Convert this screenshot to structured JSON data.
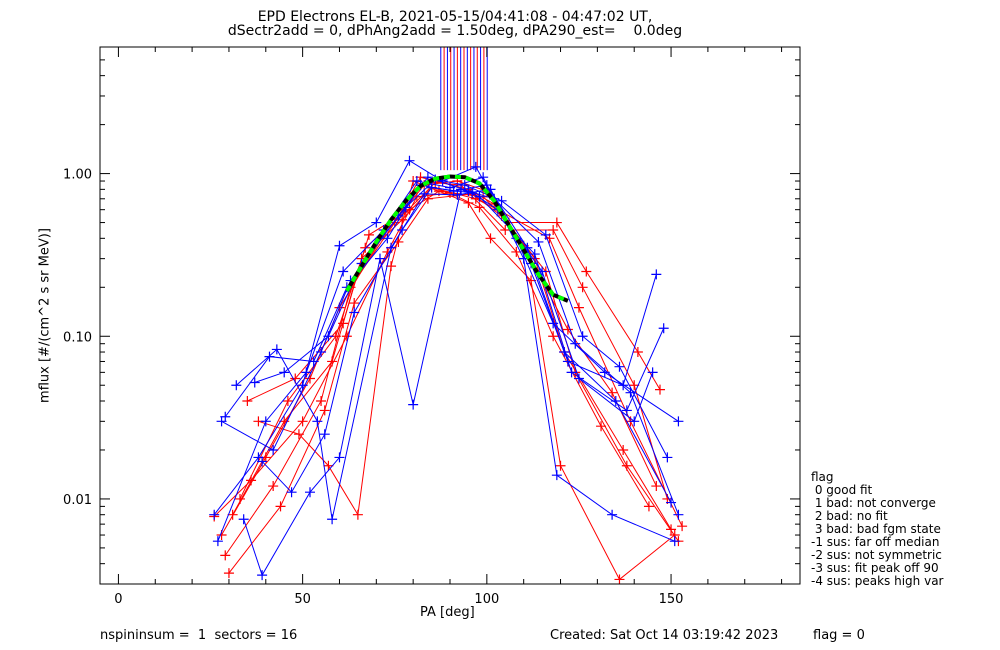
{
  "chart_data": {
    "type": "scatter",
    "title": "EPD Electrons EL-B, 2021-05-15/04:41:08 - 04:47:02 UT,",
    "subtitle": "dSectr2add = 0, dPhAng2add = 1.50deg, dPA290_est=    0.0deg",
    "xlabel": "PA [deg]",
    "ylabel": "mflux [#/(cm^2 s sr MeV)]",
    "xlim": [
      -5,
      185
    ],
    "ylim": [
      0.003,
      6.0
    ],
    "yscale": "log",
    "xticks": [
      0,
      50,
      100,
      150
    ],
    "yticks": [
      0.01,
      0.1,
      1.0
    ],
    "yticklabels": [
      "0.01",
      "0.10",
      "1.00"
    ],
    "grid": false,
    "series": [
      {
        "color": "#ff0000",
        "marker": "+",
        "x": [
          28,
          40,
          52,
          60,
          72,
          83,
          92,
          100,
          110,
          122,
          134,
          146
        ],
        "y": [
          0.006,
          0.018,
          0.055,
          0.15,
          0.42,
          0.85,
          0.9,
          0.78,
          0.36,
          0.11,
          0.045,
          0.012
        ]
      },
      {
        "color": "#ff0000",
        "marker": "+",
        "x": [
          29,
          42,
          55,
          63,
          75,
          82,
          95,
          102,
          113,
          121,
          137,
          150
        ],
        "y": [
          0.0045,
          0.012,
          0.04,
          0.2,
          0.5,
          0.95,
          0.8,
          0.65,
          0.3,
          0.08,
          0.02,
          0.0065
        ]
      },
      {
        "color": "#ff0000",
        "marker": "+",
        "x": [
          30,
          44,
          56,
          64,
          76,
          84,
          96,
          104,
          116,
          124,
          138,
          152
        ],
        "y": [
          0.0035,
          0.009,
          0.035,
          0.16,
          0.38,
          0.7,
          0.75,
          0.55,
          0.25,
          0.06,
          0.016,
          0.0055
        ]
      },
      {
        "color": "#ff0000",
        "marker": "+",
        "x": [
          31,
          45,
          58,
          66,
          77,
          85,
          97,
          103,
          117,
          125,
          139,
          153
        ],
        "y": [
          0.008,
          0.03,
          0.07,
          0.3,
          0.52,
          0.82,
          0.7,
          0.6,
          0.4,
          0.15,
          0.03,
          0.0068
        ]
      },
      {
        "color": "#ff0000",
        "marker": "+",
        "x": [
          33,
          46,
          59,
          67,
          78,
          86,
          93,
          105,
          118,
          126,
          140,
          149
        ],
        "y": [
          0.01,
          0.04,
          0.1,
          0.35,
          0.58,
          0.88,
          0.85,
          0.45,
          0.45,
          0.2,
          0.05,
          0.01
        ]
      },
      {
        "color": "#ff0000",
        "marker": "+",
        "x": [
          35,
          48,
          61,
          68,
          79,
          87,
          99,
          106,
          119,
          127,
          141,
          147
        ],
        "y": [
          0.04,
          0.055,
          0.12,
          0.42,
          0.6,
          0.78,
          0.72,
          0.5,
          0.5,
          0.25,
          0.08,
          0.047
        ]
      },
      {
        "color": "#ff0000",
        "marker": "+",
        "x": [
          38,
          49,
          57,
          65,
          74,
          80,
          95,
          101,
          112,
          120,
          136,
          151
        ],
        "y": [
          0.03,
          0.025,
          0.016,
          0.008,
          0.27,
          0.9,
          0.66,
          0.4,
          0.22,
          0.016,
          0.0032,
          0.006
        ]
      },
      {
        "color": "#ff0000",
        "marker": "+",
        "x": [
          26,
          36,
          50,
          62,
          73,
          81,
          90,
          98,
          108,
          118,
          131,
          144
        ],
        "y": [
          0.0078,
          0.013,
          0.03,
          0.1,
          0.33,
          0.72,
          0.76,
          0.62,
          0.33,
          0.1,
          0.028,
          0.009
        ]
      },
      {
        "color": "#0000ff",
        "marker": "+",
        "x": [
          26,
          38,
          50,
          60,
          70,
          79,
          88,
          97,
          108,
          118,
          132,
          152
        ],
        "y": [
          0.008,
          0.018,
          0.05,
          0.36,
          0.5,
          1.2,
          0.9,
          1.1,
          0.4,
          0.12,
          0.06,
          0.03
        ]
      },
      {
        "color": "#0000ff",
        "marker": "+",
        "x": [
          27,
          40,
          51,
          61,
          72,
          81,
          90,
          99,
          110,
          119,
          134,
          151
        ],
        "y": [
          0.0055,
          0.03,
          0.06,
          0.25,
          0.45,
          0.9,
          0.82,
          0.95,
          0.3,
          0.014,
          0.008,
          0.0055
        ]
      },
      {
        "color": "#0000ff",
        "marker": "+",
        "x": [
          29,
          41,
          53,
          62,
          73,
          82,
          91,
          100,
          111,
          121,
          135,
          150
        ],
        "y": [
          0.032,
          0.075,
          0.07,
          0.2,
          0.4,
          0.85,
          0.78,
          0.85,
          0.35,
          0.08,
          0.04,
          0.0095
        ]
      },
      {
        "color": "#0000ff",
        "marker": "+",
        "x": [
          32,
          43,
          54,
          58,
          74,
          83,
          92,
          101,
          112,
          122,
          137,
          146
        ],
        "y": [
          0.05,
          0.083,
          0.03,
          0.0075,
          0.35,
          0.75,
          0.74,
          0.8,
          0.28,
          0.07,
          0.05,
          0.24
        ]
      },
      {
        "color": "#0000ff",
        "marker": "+",
        "x": [
          34,
          39,
          52,
          60,
          71,
          80,
          93,
          98,
          113,
          123,
          138,
          148
        ],
        "y": [
          0.0075,
          0.0034,
          0.011,
          0.018,
          0.3,
          0.038,
          0.8,
          0.72,
          0.32,
          0.06,
          0.035,
          0.112
        ]
      },
      {
        "color": "#0000ff",
        "marker": "+",
        "x": [
          28,
          42,
          55,
          63,
          76,
          84,
          95,
          102,
          114,
          124,
          139,
          152
        ],
        "y": [
          0.03,
          0.02,
          0.08,
          0.22,
          0.55,
          0.95,
          0.78,
          0.7,
          0.38,
          0.09,
          0.045,
          0.008
        ]
      },
      {
        "color": "#0000ff",
        "marker": "+",
        "x": [
          39,
          47,
          56,
          64,
          77,
          85,
          96,
          103,
          115,
          125,
          140,
          145
        ],
        "y": [
          0.017,
          0.011,
          0.025,
          0.14,
          0.45,
          0.82,
          0.76,
          0.6,
          0.25,
          0.055,
          0.03,
          0.06
        ]
      },
      {
        "color": "#0000ff",
        "marker": "+",
        "x": [
          37,
          45,
          57,
          66,
          78,
          86,
          94,
          104,
          116,
          126,
          136,
          149
        ],
        "y": [
          0.052,
          0.06,
          0.1,
          0.28,
          0.62,
          0.92,
          0.85,
          0.68,
          0.42,
          0.1,
          0.065,
          0.018
        ]
      }
    ],
    "spikes": {
      "x_range": [
        87.5,
        101
      ],
      "y_base": 1.05,
      "colors": [
        "#0000ff",
        "#ff0000"
      ]
    },
    "fit_curve": {
      "colors": [
        "#000000",
        "#00ff00"
      ],
      "style": "dashed",
      "x": [
        62,
        66,
        70,
        74,
        78,
        82,
        86,
        90,
        94,
        98,
        102,
        106,
        110,
        114,
        118,
        122
      ],
      "y": [
        0.19,
        0.27,
        0.38,
        0.52,
        0.68,
        0.84,
        0.93,
        0.96,
        0.95,
        0.87,
        0.68,
        0.48,
        0.34,
        0.24,
        0.18,
        0.165
      ]
    }
  },
  "legend": {
    "title": "flag",
    "items": [
      " 0 good fit",
      " 1 bad: not converge",
      " 2 bad: no fit",
      " 3 bad: bad fgm state",
      "-1 sus: far off median",
      "-2 sus: not symmetric",
      "-3 sus: fit peak off 90",
      "-4 sus: peaks high var"
    ]
  },
  "footer": {
    "left": "nspininsum =  1  sectors = 16",
    "created": "Created: Sat Oct 14 03:19:42 2023",
    "flag": "flag = 0"
  }
}
